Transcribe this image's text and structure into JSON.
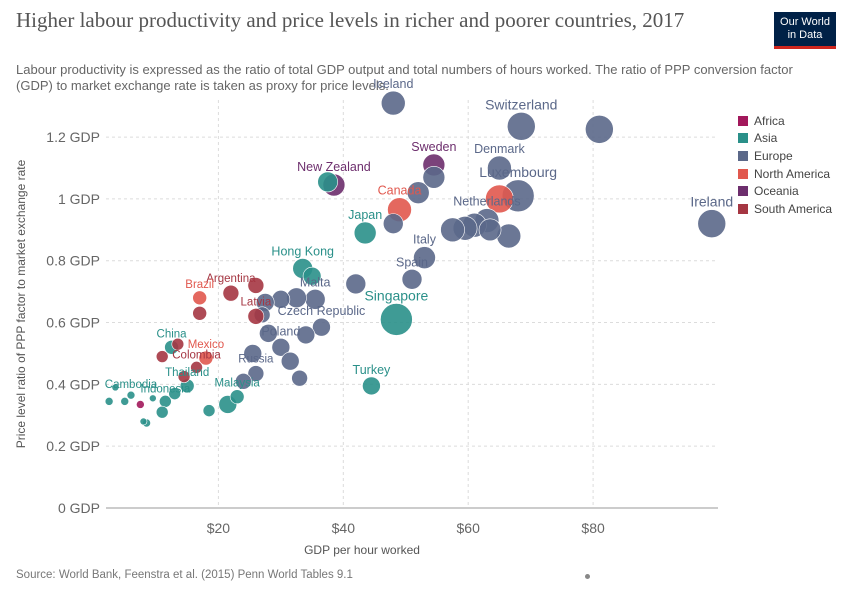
{
  "header": {
    "title": "Higher labour productivity and price levels in richer and poorer countries, 2017",
    "subtitle": "Labour productivity is expressed as the ratio of total GDP output and total numbers of hours worked. The ratio of PPP conversion factor (GDP) to market exchange rate is taken as proxy for price levels.",
    "logo_line1": "Our World",
    "logo_line2": "in Data"
  },
  "footer": {
    "source": "Source: World Bank, Feenstra et al. (2015) Penn World Tables 9.1"
  },
  "chart_data": {
    "type": "scatter",
    "xlabel": "GDP per hour worked",
    "ylabel": "Price level ratio of PPP factor to market exchange rate",
    "xlim": [
      2,
      100
    ],
    "ylim": [
      0,
      1.32
    ],
    "x_ticks": [
      {
        "value": 20,
        "label": "$20"
      },
      {
        "value": 40,
        "label": "$40"
      },
      {
        "value": 60,
        "label": "$60"
      },
      {
        "value": 80,
        "label": "$80"
      }
    ],
    "y_ticks": [
      {
        "value": 0,
        "label": "0 GDP"
      },
      {
        "value": 0.2,
        "label": "0.2 GDP"
      },
      {
        "value": 0.4,
        "label": "0.4 GDP"
      },
      {
        "value": 0.6,
        "label": "0.6 GDP"
      },
      {
        "value": 0.8,
        "label": "0.8 GDP"
      },
      {
        "value": 1.0,
        "label": "1 GDP"
      },
      {
        "value": 1.2,
        "label": "1.2 GDP"
      }
    ],
    "grid": true,
    "legend_position": "right",
    "legend": [
      {
        "name": "Africa",
        "color": "#a2185b"
      },
      {
        "name": "Asia",
        "color": "#2a9089"
      },
      {
        "name": "Europe",
        "color": "#5b6889"
      },
      {
        "name": "North America",
        "color": "#e1584e"
      },
      {
        "name": "Oceania",
        "color": "#6d2e6d"
      },
      {
        "name": "South America",
        "color": "#a53642"
      }
    ],
    "points": [
      {
        "label": "Iceland",
        "x": 48,
        "y": 1.31,
        "r": 12,
        "region": "Europe"
      },
      {
        "label": "Switzerland",
        "x": 68.5,
        "y": 1.235,
        "r": 14,
        "region": "Europe"
      },
      {
        "label": "",
        "x": 81,
        "y": 1.225,
        "r": 14,
        "region": "Europe"
      },
      {
        "label": "Denmark",
        "x": 65,
        "y": 1.1,
        "r": 12,
        "region": "Europe"
      },
      {
        "label": "Luxembourg",
        "x": 68,
        "y": 1.01,
        "r": 16,
        "region": "Europe"
      },
      {
        "label": "Sweden",
        "x": 54.5,
        "y": 1.11,
        "r": 11,
        "region": "Oceania"
      },
      {
        "label": "",
        "x": 54.5,
        "y": 1.07,
        "r": 11,
        "region": "Europe"
      },
      {
        "label": "",
        "x": 52,
        "y": 1.02,
        "r": 11,
        "region": "Europe"
      },
      {
        "label": "Canada",
        "x": 49,
        "y": 0.965,
        "r": 12,
        "region": "North America"
      },
      {
        "label": "",
        "x": 65,
        "y": 1.0,
        "r": 14,
        "region": "North America"
      },
      {
        "label": "Netherlands",
        "x": 63,
        "y": 0.93,
        "r": 12,
        "region": "Europe"
      },
      {
        "label": "",
        "x": 61,
        "y": 0.915,
        "r": 12,
        "region": "Europe"
      },
      {
        "label": "",
        "x": 59.5,
        "y": 0.905,
        "r": 12,
        "region": "Europe"
      },
      {
        "label": "",
        "x": 63.5,
        "y": 0.9,
        "r": 11,
        "region": "Europe"
      },
      {
        "label": "",
        "x": 57.5,
        "y": 0.9,
        "r": 12,
        "region": "Europe"
      },
      {
        "label": "",
        "x": 66.5,
        "y": 0.88,
        "r": 12,
        "region": "Europe"
      },
      {
        "label": "Ireland",
        "x": 99,
        "y": 0.92,
        "r": 14,
        "region": "Europe"
      },
      {
        "label": "New Zealand",
        "x": 38.5,
        "y": 1.045,
        "r": 11,
        "region": "Oceania"
      },
      {
        "label": "",
        "x": 37.5,
        "y": 1.055,
        "r": 10,
        "region": "Asia"
      },
      {
        "label": "Japan",
        "x": 43.5,
        "y": 0.89,
        "r": 11,
        "region": "Asia"
      },
      {
        "label": "",
        "x": 48,
        "y": 0.92,
        "r": 10,
        "region": "Europe"
      },
      {
        "label": "Italy",
        "x": 53,
        "y": 0.81,
        "r": 11,
        "region": "Europe"
      },
      {
        "label": "Spain",
        "x": 51,
        "y": 0.74,
        "r": 10,
        "region": "Europe"
      },
      {
        "label": "Hong Kong",
        "x": 33.5,
        "y": 0.775,
        "r": 10,
        "region": "Asia"
      },
      {
        "label": "",
        "x": 35,
        "y": 0.75,
        "r": 9,
        "region": "Asia"
      },
      {
        "label": "",
        "x": 42,
        "y": 0.725,
        "r": 10,
        "region": "Europe"
      },
      {
        "label": "Malta",
        "x": 35.5,
        "y": 0.675,
        "r": 10,
        "region": "Europe"
      },
      {
        "label": "",
        "x": 32.5,
        "y": 0.68,
        "r": 10,
        "region": "Europe"
      },
      {
        "label": "",
        "x": 30,
        "y": 0.675,
        "r": 9,
        "region": "Europe"
      },
      {
        "label": "",
        "x": 27.5,
        "y": 0.665,
        "r": 9,
        "region": "Europe"
      },
      {
        "label": "",
        "x": 27,
        "y": 0.625,
        "r": 8,
        "region": "Europe"
      },
      {
        "label": "Singapore",
        "x": 48.5,
        "y": 0.61,
        "r": 16,
        "region": "Asia"
      },
      {
        "label": "Argentina",
        "x": 22,
        "y": 0.695,
        "r": 8,
        "region": "South America"
      },
      {
        "label": "",
        "x": 26,
        "y": 0.72,
        "r": 8,
        "region": "South America"
      },
      {
        "label": "Brazil",
        "x": 17,
        "y": 0.68,
        "r": 7,
        "region": "North America"
      },
      {
        "label": "",
        "x": 17,
        "y": 0.63,
        "r": 7,
        "region": "South America"
      },
      {
        "label": "Latvia",
        "x": 26,
        "y": 0.62,
        "r": 8,
        "region": "South America"
      },
      {
        "label": "Czech Republic",
        "x": 36.5,
        "y": 0.585,
        "r": 9,
        "region": "Europe"
      },
      {
        "label": "",
        "x": 34,
        "y": 0.56,
        "r": 9,
        "region": "Europe"
      },
      {
        "label": "",
        "x": 28,
        "y": 0.565,
        "r": 9,
        "region": "Europe"
      },
      {
        "label": "Poland",
        "x": 30,
        "y": 0.52,
        "r": 9,
        "region": "Europe"
      },
      {
        "label": "",
        "x": 25.5,
        "y": 0.5,
        "r": 9,
        "region": "Europe"
      },
      {
        "label": "",
        "x": 31.5,
        "y": 0.475,
        "r": 9,
        "region": "Europe"
      },
      {
        "label": "China",
        "x": 12.5,
        "y": 0.52,
        "r": 7,
        "region": "Asia"
      },
      {
        "label": "",
        "x": 13.5,
        "y": 0.53,
        "r": 6,
        "region": "South America"
      },
      {
        "label": "",
        "x": 11,
        "y": 0.49,
        "r": 6,
        "region": "South America"
      },
      {
        "label": "Mexico",
        "x": 18,
        "y": 0.485,
        "r": 7,
        "region": "North America"
      },
      {
        "label": "Colombia",
        "x": 16.5,
        "y": 0.455,
        "r": 6,
        "region": "South America"
      },
      {
        "label": "",
        "x": 14.5,
        "y": 0.425,
        "r": 6,
        "region": "South America"
      },
      {
        "label": "Russia",
        "x": 26,
        "y": 0.435,
        "r": 8,
        "region": "Europe"
      },
      {
        "label": "",
        "x": 24,
        "y": 0.41,
        "r": 8,
        "region": "Europe"
      },
      {
        "label": "",
        "x": 33,
        "y": 0.42,
        "r": 8,
        "region": "Europe"
      },
      {
        "label": "Turkey",
        "x": 44.5,
        "y": 0.395,
        "r": 9,
        "region": "Asia"
      },
      {
        "label": "Thailand",
        "x": 15,
        "y": 0.395,
        "r": 7,
        "region": "Asia"
      },
      {
        "label": "Malaysia",
        "x": 23,
        "y": 0.36,
        "r": 7,
        "region": "Asia"
      },
      {
        "label": "",
        "x": 21.5,
        "y": 0.335,
        "r": 9,
        "region": "Asia"
      },
      {
        "label": "",
        "x": 13,
        "y": 0.37,
        "r": 6,
        "region": "Asia"
      },
      {
        "label": "Indonesia",
        "x": 11.5,
        "y": 0.345,
        "r": 6,
        "region": "Asia"
      },
      {
        "label": "",
        "x": 11,
        "y": 0.31,
        "r": 6,
        "region": "Asia"
      },
      {
        "label": "",
        "x": 18.5,
        "y": 0.315,
        "r": 6,
        "region": "Asia"
      },
      {
        "label": "Cambodia",
        "x": 6,
        "y": 0.365,
        "r": 4,
        "region": "Asia"
      },
      {
        "label": "",
        "x": 3.5,
        "y": 0.39,
        "r": 3.5,
        "region": "Asia"
      },
      {
        "label": "",
        "x": 2.5,
        "y": 0.345,
        "r": 4,
        "region": "Asia"
      },
      {
        "label": "",
        "x": 5,
        "y": 0.345,
        "r": 4,
        "region": "Asia"
      },
      {
        "label": "",
        "x": 7.5,
        "y": 0.335,
        "r": 4,
        "region": "Africa"
      },
      {
        "label": "",
        "x": 8.5,
        "y": 0.275,
        "r": 4,
        "region": "Asia"
      },
      {
        "label": "",
        "x": 8,
        "y": 0.28,
        "r": 3.5,
        "region": "Asia"
      },
      {
        "label": "",
        "x": 9.5,
        "y": 0.355,
        "r": 3.5,
        "region": "Asia"
      }
    ]
  }
}
